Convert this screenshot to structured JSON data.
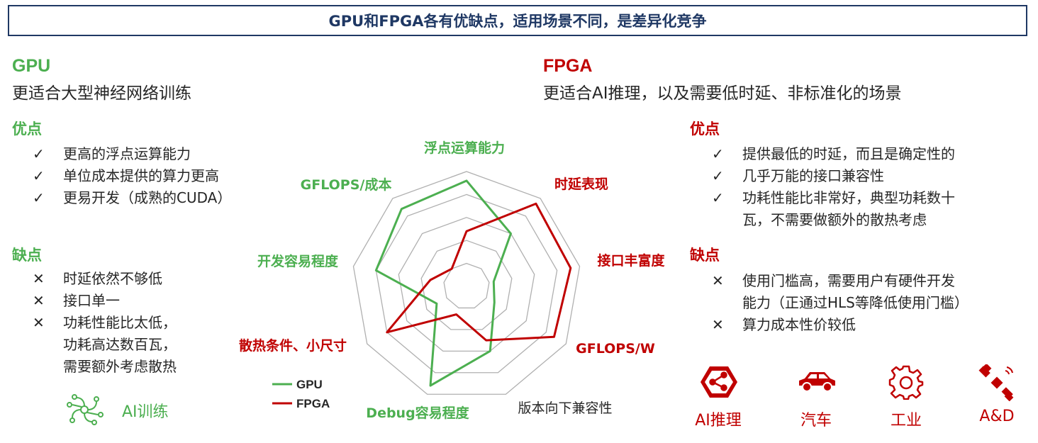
{
  "title": "GPU和FPGA各有优缺点，适用场景不同，是差异化竞争",
  "gpu": {
    "heading": "GPU",
    "subtitle": "更适合大型神经网络训练",
    "pros_title": "优点",
    "pros": [
      "更高的浮点运算能力",
      "单位成本提供的算力更高",
      "更易开发（成熟的CUDA）"
    ],
    "cons_title": "缺点",
    "cons": [
      "时延依然不够低",
      "接口单一",
      "功耗性能比太低，",
      "功耗高达数百瓦，",
      "需要额外考虑散热"
    ],
    "app_label": "AI训练",
    "app_icon": "neural-network-icon"
  },
  "fpga": {
    "heading": "FPGA",
    "subtitle": "更适合AI推理，以及需要低时延、非标准化的场景",
    "pros_title": "优点",
    "pros": [
      "提供最低的时延，而且是确定性的",
      "几乎万能的接口兼容性",
      "功耗性能比非常好，典型功耗数十",
      "瓦，不需要做额外的散热考虑"
    ],
    "cons_title": "缺点",
    "cons": [
      "使用门槛高，需要用户有硬件开发",
      "能力（正通过HLS等降低使用门槛）",
      "算力成本性价较低"
    ],
    "apps": [
      {
        "label": "AI推理",
        "icon": "ai-inference-hexagon-icon"
      },
      {
        "label": "汽车",
        "icon": "car-icon"
      },
      {
        "label": "工业",
        "icon": "gear-icon"
      },
      {
        "label": "A&D",
        "icon": "satellite-icon"
      }
    ]
  },
  "chart_data": {
    "type": "radar",
    "axes": [
      "浮点运算能力",
      "时延表现",
      "接口丰富度",
      "GFLOPS/W",
      "版本向下兼容性",
      "Debug容易程度",
      "散热条件、小尺寸",
      "开发容易程度",
      "GFLOPS/成本"
    ],
    "axis_colors": [
      "#4caf50",
      "#c00000",
      "#c00000",
      "#c00000",
      "#262626",
      "#4caf50",
      "#c00000",
      "#4caf50",
      "#4caf50"
    ],
    "levels": 5,
    "max": 5,
    "series": [
      {
        "name": "GPU",
        "color": "#4caf50",
        "values": [
          4.6,
          3.0,
          1.2,
          1.4,
          3.0,
          4.6,
          1.5,
          4.0,
          4.4
        ]
      },
      {
        "name": "FPGA",
        "color": "#c00000",
        "values": [
          2.4,
          4.7,
          4.6,
          4.4,
          2.5,
          1.3,
          4.0,
          1.6,
          1.0
        ]
      }
    ]
  },
  "colors": {
    "green": "#4caf50",
    "red": "#c00000",
    "navy": "#1f3864",
    "grid": "#b0b0b0"
  }
}
